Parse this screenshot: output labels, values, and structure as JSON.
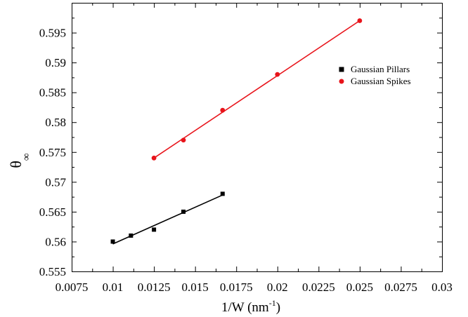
{
  "chart_data": {
    "type": "scatter",
    "xlabel": "1/W (nm",
    "xlabel_sup": "-1",
    "xlabel_end": ")",
    "ylabel": "θ",
    "ylabel_sub": "∞",
    "xlim": [
      0.0075,
      0.03
    ],
    "ylim": [
      0.555,
      0.6
    ],
    "x_ticks": [
      0.0075,
      0.01,
      0.0125,
      0.015,
      0.0175,
      0.02,
      0.0225,
      0.025,
      0.0275,
      0.03
    ],
    "x_tick_labels": [
      "0.0075",
      "0.01",
      "0.0125",
      "0.015",
      "0.0175",
      "0.02",
      "0.0225",
      "0.025",
      "0.0275",
      "0.03"
    ],
    "y_ticks": [
      0.555,
      0.56,
      0.565,
      0.57,
      0.575,
      0.58,
      0.585,
      0.59,
      0.595
    ],
    "y_tick_labels": [
      "0.555",
      "0.56",
      "0.565",
      "0.57",
      "0.575",
      "0.58",
      "0.585",
      "0.59",
      "0.595"
    ],
    "grid": false,
    "legend_position": "top-right",
    "series": [
      {
        "name": "Gaussian Pillars",
        "marker": "square",
        "color": "#000000",
        "x": [
          0.01,
          0.0111,
          0.0125,
          0.01429,
          0.01667
        ],
        "y": [
          0.56,
          0.561,
          0.562,
          0.565,
          0.568
        ],
        "fit": {
          "x": [
            0.01,
            0.01667
          ],
          "y": [
            0.5596,
            0.5678
          ]
        }
      },
      {
        "name": "Gaussian Spikes",
        "marker": "circle",
        "color": "#e8141b",
        "x": [
          0.0125,
          0.01429,
          0.01667,
          0.02,
          0.025
        ],
        "y": [
          0.574,
          0.577,
          0.582,
          0.588,
          0.597
        ],
        "fit": {
          "x": [
            0.0125,
            0.025
          ],
          "y": [
            0.574,
            0.597
          ]
        }
      }
    ]
  }
}
